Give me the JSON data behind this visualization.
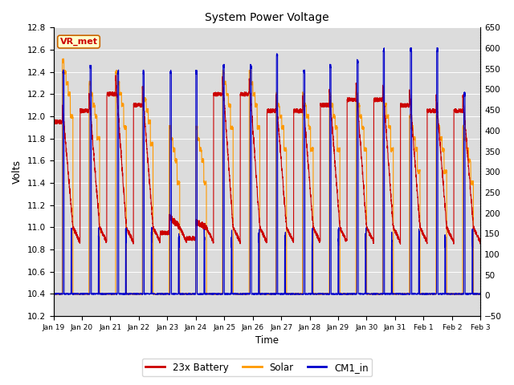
{
  "title": "System Power Voltage",
  "ylabel_left": "Volts",
  "xlabel": "Time",
  "ylim_left": [
    10.2,
    12.8
  ],
  "ylim_right": [
    -50,
    650
  ],
  "yticks_left": [
    10.2,
    10.4,
    10.6,
    10.8,
    11.0,
    11.2,
    11.4,
    11.6,
    11.8,
    12.0,
    12.2,
    12.4,
    12.6,
    12.8
  ],
  "yticks_right": [
    -50,
    0,
    50,
    100,
    150,
    200,
    250,
    300,
    350,
    400,
    450,
    500,
    550,
    600,
    650
  ],
  "xtick_labels": [
    "Jan 19",
    "Jan 20",
    "Jan 21",
    "Jan 22",
    "Jan 23",
    "Jan 24",
    "Jan 25",
    "Jan 26",
    "Jan 27",
    "Jan 28",
    "Jan 29",
    "Jan 30",
    "Jan 31",
    "Feb 1",
    "Feb 2",
    "Feb 3"
  ],
  "colors": {
    "battery": "#cc0000",
    "solar": "#ff9900",
    "cm1": "#0000cc",
    "background": "#dcdcdc",
    "vr_met_bg": "#ffffcc",
    "vr_met_border": "#cc6600",
    "vr_met_text": "#cc0000"
  },
  "legend_labels": [
    "23x Battery",
    "Solar",
    "CM1_in"
  ],
  "vr_met_label": "VR_met",
  "figsize": [
    6.4,
    4.8
  ],
  "dpi": 100
}
